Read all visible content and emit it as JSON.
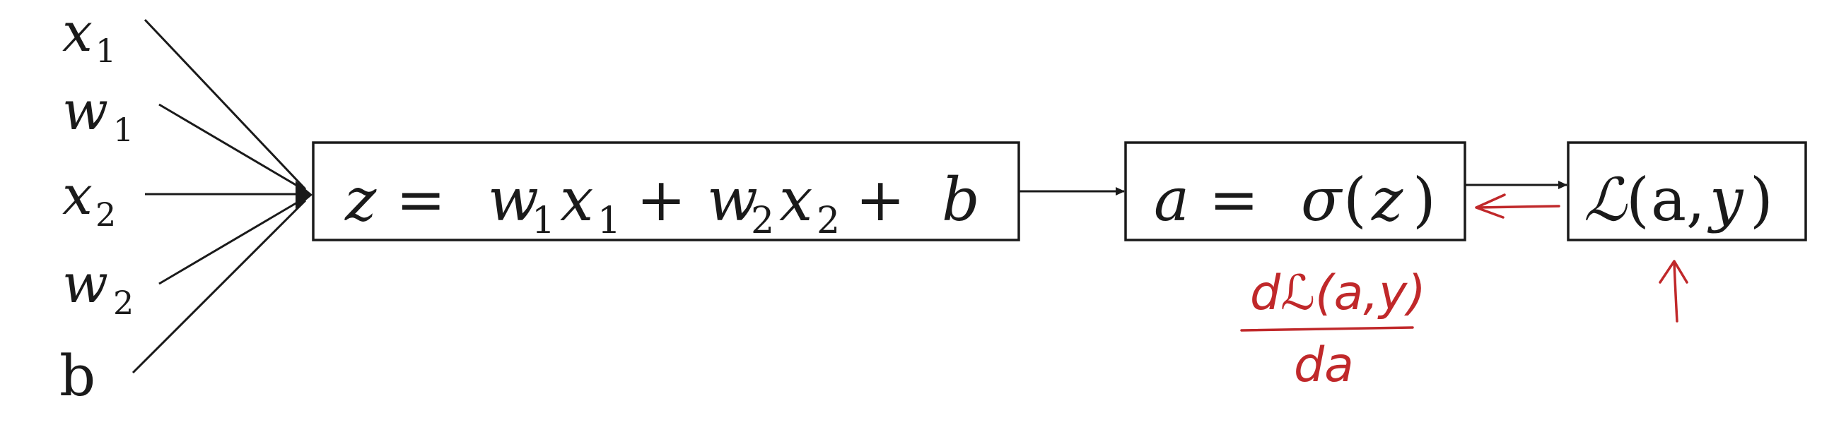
{
  "inputs": [
    {
      "base": "x",
      "sub": "1"
    },
    {
      "base": "w",
      "sub": "1"
    },
    {
      "base": "x",
      "sub": "2"
    },
    {
      "base": "w",
      "sub": "2"
    },
    {
      "base": "b",
      "sub": ""
    }
  ],
  "box_z": {
    "z": "z",
    "eq": "=",
    "w1": "w",
    "w1_sub": "1",
    "x1": "x",
    "x1_sub": "1",
    "plus1": "+",
    "w2": "w",
    "w2_sub": "2",
    "x2": "x",
    "x2_sub": "2",
    "plus2": "+",
    "b": "b"
  },
  "box_a": {
    "a": "a",
    "eq": "=",
    "sigma": "σ",
    "open": "(",
    "z": "z",
    "close": ")"
  },
  "box_loss": {
    "L": "ℒ",
    "open": "(",
    "a": "a",
    "comma": ",",
    "y": "y",
    "close": ")"
  },
  "annotation": {
    "numerator": "dℒ(a,y)",
    "denominator": "da",
    "color": "#c0282a"
  },
  "colors": {
    "ink": "#1a1a1a",
    "annotation": "#c0282a"
  }
}
